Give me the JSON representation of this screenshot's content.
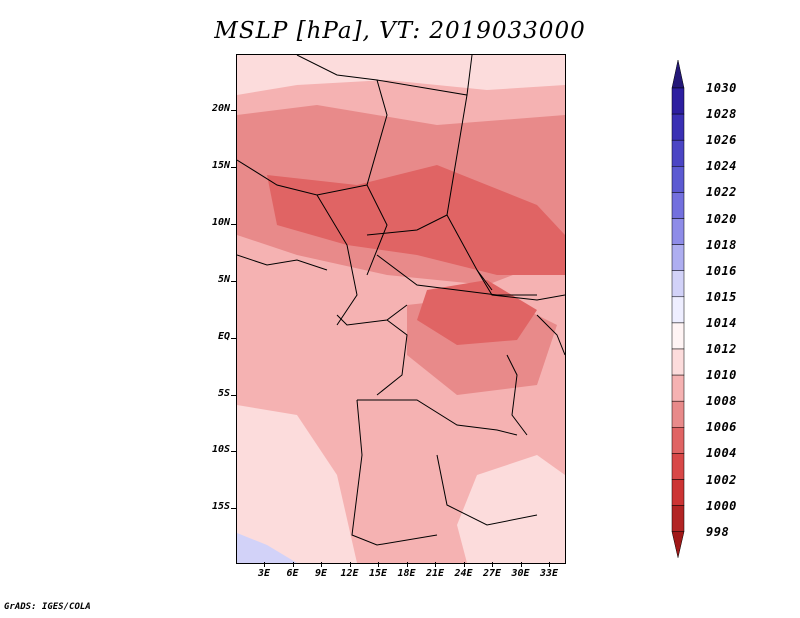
{
  "title": "MSLP [hPa], VT: 2019033000",
  "footer": "GrADS: IGES/COLA",
  "lat_labels": [
    "20N",
    "15N",
    "10N",
    "5N",
    "EQ",
    "5S",
    "10S",
    "15S"
  ],
  "lon_labels": [
    "3E",
    "6E",
    "9E",
    "12E",
    "15E",
    "18E",
    "21E",
    "24E",
    "27E",
    "30E",
    "33E"
  ],
  "colorbar": {
    "labels": [
      "1030",
      "1028",
      "1026",
      "1024",
      "1022",
      "1020",
      "1018",
      "1016",
      "1015",
      "1014",
      "1012",
      "1010",
      "1008",
      "1006",
      "1004",
      "1002",
      "1000",
      "998"
    ],
    "colors": [
      "#241878",
      "#2d1fa0",
      "#3a30b4",
      "#4b45c4",
      "#5c5ad2",
      "#7370de",
      "#8e8ce8",
      "#aeaef0",
      "#d2d2f8",
      "#eeeeff",
      "#fff4f4",
      "#fcdcdc",
      "#f5b2b2",
      "#e88a8a",
      "#e06464",
      "#d84848",
      "#cc3434",
      "#b22424",
      "#a01818"
    ]
  },
  "map_colors": {
    "light": "#fcdcdc",
    "medium": "#f5b2b2",
    "dark": "#e88a8a",
    "darker": "#e06464",
    "blue": "#d2d2f8"
  }
}
